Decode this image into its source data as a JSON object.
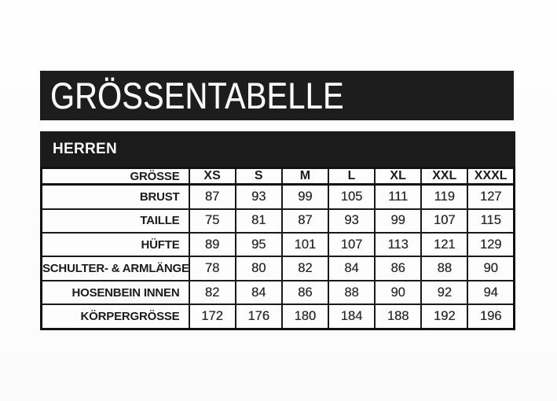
{
  "title": "GRÖSSENTABELLE",
  "section": "HERREN",
  "table": {
    "header_label": "GRÖSSE",
    "columns": [
      "XS",
      "S",
      "M",
      "L",
      "XL",
      "XXL",
      "XXXL"
    ],
    "rows": [
      {
        "label": "BRUST",
        "values": [
          87,
          93,
          99,
          105,
          111,
          119,
          127
        ]
      },
      {
        "label": "TAILLE",
        "values": [
          75,
          81,
          87,
          93,
          99,
          107,
          115
        ]
      },
      {
        "label": "HÜFTE",
        "values": [
          89,
          95,
          101,
          107,
          113,
          121,
          129
        ]
      },
      {
        "label": "SCHULTER- & ARMLÄNGE",
        "values": [
          78,
          80,
          82,
          84,
          86,
          88,
          90
        ]
      },
      {
        "label": "HOSENBEIN INNEN",
        "values": [
          82,
          84,
          86,
          88,
          90,
          92,
          94
        ]
      },
      {
        "label": "KÖRPERGRÖSSE",
        "values": [
          172,
          176,
          180,
          184,
          188,
          192,
          196
        ]
      }
    ]
  },
  "colors": {
    "bar_black": "#1d1d1d",
    "section_black": "#1b1b1b",
    "border": "#111111",
    "text_dark": "#2d2d2d",
    "background": "#fdfdfd"
  }
}
